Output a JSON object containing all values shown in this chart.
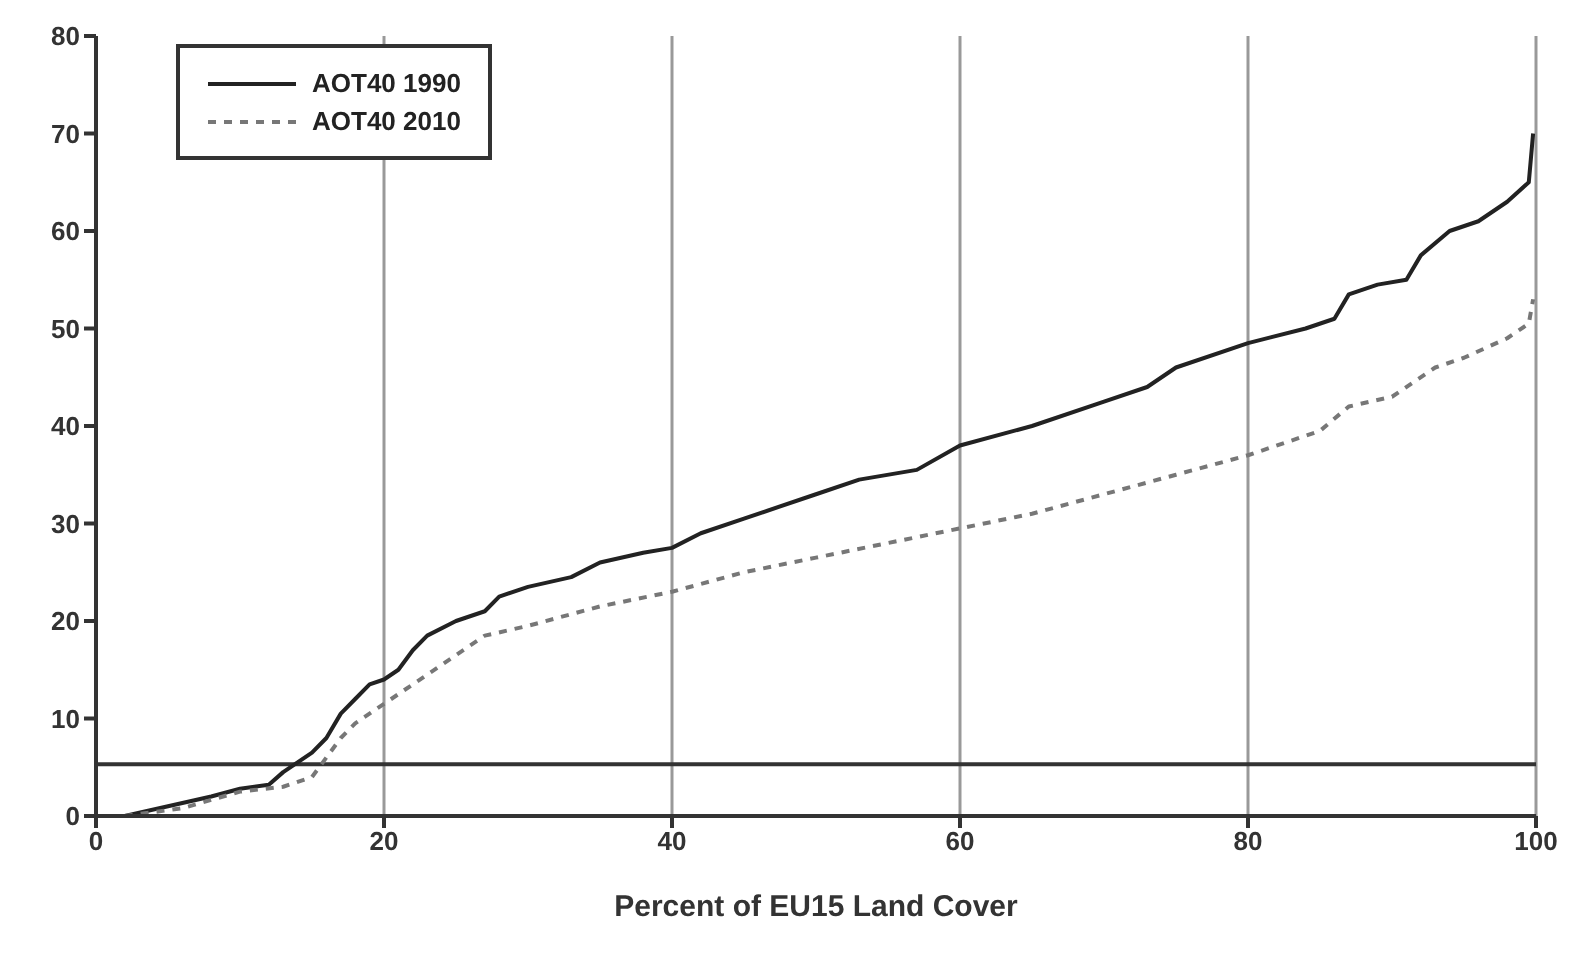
{
  "chart_data": {
    "type": "line",
    "xlabel": "Percent of EU15 Land Cover",
    "xlim": [
      0,
      100
    ],
    "xticks": [
      0,
      20,
      40,
      60,
      80,
      100
    ],
    "ylim": [
      0,
      80
    ],
    "yticks": [
      0,
      10,
      20,
      30,
      40,
      50,
      60,
      70,
      80
    ],
    "grid": "x",
    "legend": "top left",
    "marker": "none",
    "ref_lines": [
      {
        "axis": "y",
        "value": 5.3,
        "color": "#333333"
      }
    ],
    "series": [
      {
        "name": "AOT40 1990",
        "color": "#222222",
        "line_style": "solid",
        "x": [
          2,
          5,
          8,
          10,
          12,
          13,
          15,
          16,
          17,
          18,
          19,
          20,
          21,
          22,
          23,
          25,
          27,
          28,
          30,
          33,
          35,
          38,
          40,
          42,
          45,
          50,
          53,
          57,
          60,
          65,
          70,
          73,
          75,
          80,
          84,
          86,
          87,
          89,
          91,
          92,
          94,
          96,
          98,
          99.5,
          99.8
        ],
        "values": [
          0,
          1,
          2,
          2.8,
          3.2,
          4.5,
          6.5,
          8,
          10.5,
          12,
          13.5,
          14,
          15,
          17,
          18.5,
          20,
          21,
          22.5,
          23.5,
          24.5,
          26,
          27,
          27.5,
          29,
          30.5,
          33,
          34.5,
          35.5,
          38,
          40,
          42.5,
          44,
          46,
          48.5,
          50,
          51,
          53.5,
          54.5,
          55,
          57.5,
          60,
          61,
          63,
          65,
          70
        ]
      },
      {
        "name": "AOT40 2010",
        "color": "#777777",
        "line_style": "dashed",
        "x": [
          2,
          6,
          10,
          13,
          15,
          16,
          17,
          18,
          20,
          22,
          25,
          27,
          30,
          35,
          40,
          45,
          50,
          55,
          60,
          65,
          70,
          75,
          80,
          85,
          87,
          90,
          93,
          95,
          98,
          99.5,
          99.8
        ],
        "values": [
          0,
          0.8,
          2.5,
          3,
          4,
          6,
          8,
          9.5,
          11.5,
          13.5,
          16.5,
          18.5,
          19.5,
          21.5,
          23,
          25,
          26.5,
          28,
          29.5,
          31,
          33,
          35,
          37,
          39.5,
          42,
          43,
          46,
          47,
          49,
          50.5,
          53
        ]
      }
    ]
  }
}
